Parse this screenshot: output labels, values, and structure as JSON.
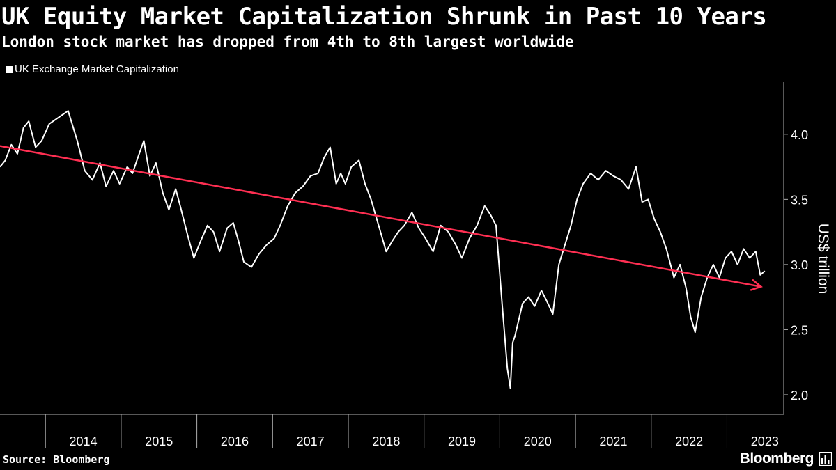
{
  "header": {
    "title": "UK Equity Market Capitalization Shrunk in Past 10 Years",
    "subtitle": "London stock market has dropped from 4th to 8th largest worldwide"
  },
  "footer": {
    "source": "Source: Bloomberg",
    "brand": "Bloomberg"
  },
  "colors": {
    "background": "#000000",
    "series": "#ffffff",
    "trend": "#ff2f52",
    "axis": "#b0b0b0"
  },
  "chart_data": {
    "type": "line",
    "title": "UK Equity Market Capitalization Shrunk in Past 10 Years",
    "subtitle": "London stock market has dropped from 4th to 8th largest worldwide",
    "xlabel": "",
    "ylabel": "US$ trillion",
    "xlim": [
      2013.4,
      2023.75
    ],
    "ylim": [
      1.85,
      4.4
    ],
    "yticks": [
      2.0,
      2.5,
      3.0,
      3.5,
      4.0
    ],
    "ytick_labels": [
      "2.0",
      "2.5",
      "3.0",
      "3.5",
      "4.0"
    ],
    "xtick_labels": [
      "2014",
      "2015",
      "2016",
      "2017",
      "2018",
      "2019",
      "2020",
      "2021",
      "2022",
      "2023"
    ],
    "xtick_values": [
      2014,
      2015,
      2016,
      2017,
      2018,
      2019,
      2020,
      2021,
      2022,
      2023
    ],
    "legend": "top-left",
    "grid": false,
    "series": [
      {
        "name": "UK Exchange Market Capitalization",
        "x": [
          2013.4,
          2013.47,
          2013.55,
          2013.63,
          2013.71,
          2013.78,
          2013.87,
          2013.95,
          2014.05,
          2014.15,
          2014.3,
          2014.42,
          2014.52,
          2014.62,
          2014.72,
          2014.8,
          2014.9,
          2014.98,
          2015.08,
          2015.15,
          2015.22,
          2015.3,
          2015.38,
          2015.46,
          2015.55,
          2015.63,
          2015.72,
          2015.78,
          2015.88,
          2015.96,
          2016.05,
          2016.14,
          2016.22,
          2016.3,
          2016.4,
          2016.48,
          2016.55,
          2016.62,
          2016.72,
          2016.82,
          2016.92,
          2017.02,
          2017.1,
          2017.2,
          2017.3,
          2017.4,
          2017.5,
          2017.6,
          2017.68,
          2017.76,
          2017.84,
          2017.9,
          2017.96,
          2018.04,
          2018.14,
          2018.22,
          2018.3,
          2018.4,
          2018.5,
          2018.58,
          2018.66,
          2018.74,
          2018.84,
          2018.93,
          2019.02,
          2019.12,
          2019.22,
          2019.32,
          2019.42,
          2019.5,
          2019.6,
          2019.7,
          2019.8,
          2019.88,
          2019.95,
          2020.03,
          2020.1,
          2020.14,
          2020.17,
          2020.2,
          2020.24,
          2020.3,
          2020.38,
          2020.46,
          2020.55,
          2020.62,
          2020.7,
          2020.78,
          2020.86,
          2020.94,
          2021.02,
          2021.1,
          2021.2,
          2021.3,
          2021.4,
          2021.5,
          2021.6,
          2021.7,
          2021.8,
          2021.88,
          2021.96,
          2022.04,
          2022.12,
          2022.2,
          2022.3,
          2022.38,
          2022.46,
          2022.52,
          2022.58,
          2022.66,
          2022.74,
          2022.82,
          2022.9,
          2022.98,
          2023.06,
          2023.14,
          2023.22,
          2023.3,
          2023.38,
          2023.44,
          2023.5
        ],
        "values": [
          3.75,
          3.8,
          3.92,
          3.85,
          4.05,
          4.1,
          3.9,
          3.95,
          4.08,
          4.12,
          4.18,
          3.95,
          3.72,
          3.65,
          3.78,
          3.6,
          3.72,
          3.62,
          3.75,
          3.7,
          3.82,
          3.95,
          3.68,
          3.78,
          3.55,
          3.42,
          3.58,
          3.45,
          3.22,
          3.05,
          3.18,
          3.3,
          3.25,
          3.1,
          3.28,
          3.32,
          3.18,
          3.02,
          2.98,
          3.08,
          3.15,
          3.2,
          3.3,
          3.45,
          3.55,
          3.6,
          3.68,
          3.7,
          3.82,
          3.9,
          3.62,
          3.7,
          3.62,
          3.75,
          3.8,
          3.62,
          3.5,
          3.3,
          3.1,
          3.18,
          3.25,
          3.3,
          3.4,
          3.28,
          3.2,
          3.1,
          3.3,
          3.25,
          3.15,
          3.05,
          3.2,
          3.3,
          3.45,
          3.38,
          3.3,
          2.7,
          2.2,
          2.05,
          2.4,
          2.45,
          2.55,
          2.7,
          2.75,
          2.68,
          2.8,
          2.72,
          2.62,
          3.0,
          3.15,
          3.3,
          3.5,
          3.62,
          3.7,
          3.65,
          3.72,
          3.68,
          3.65,
          3.58,
          3.75,
          3.48,
          3.5,
          3.35,
          3.25,
          3.12,
          2.9,
          3.0,
          2.82,
          2.6,
          2.48,
          2.75,
          2.9,
          3.0,
          2.9,
          3.05,
          3.1,
          3.0,
          3.12,
          3.05,
          3.1,
          2.92,
          2.95
        ]
      },
      {
        "name": "Trend",
        "x": [
          2013.4,
          2023.45
        ],
        "values": [
          3.91,
          2.83
        ]
      }
    ]
  }
}
